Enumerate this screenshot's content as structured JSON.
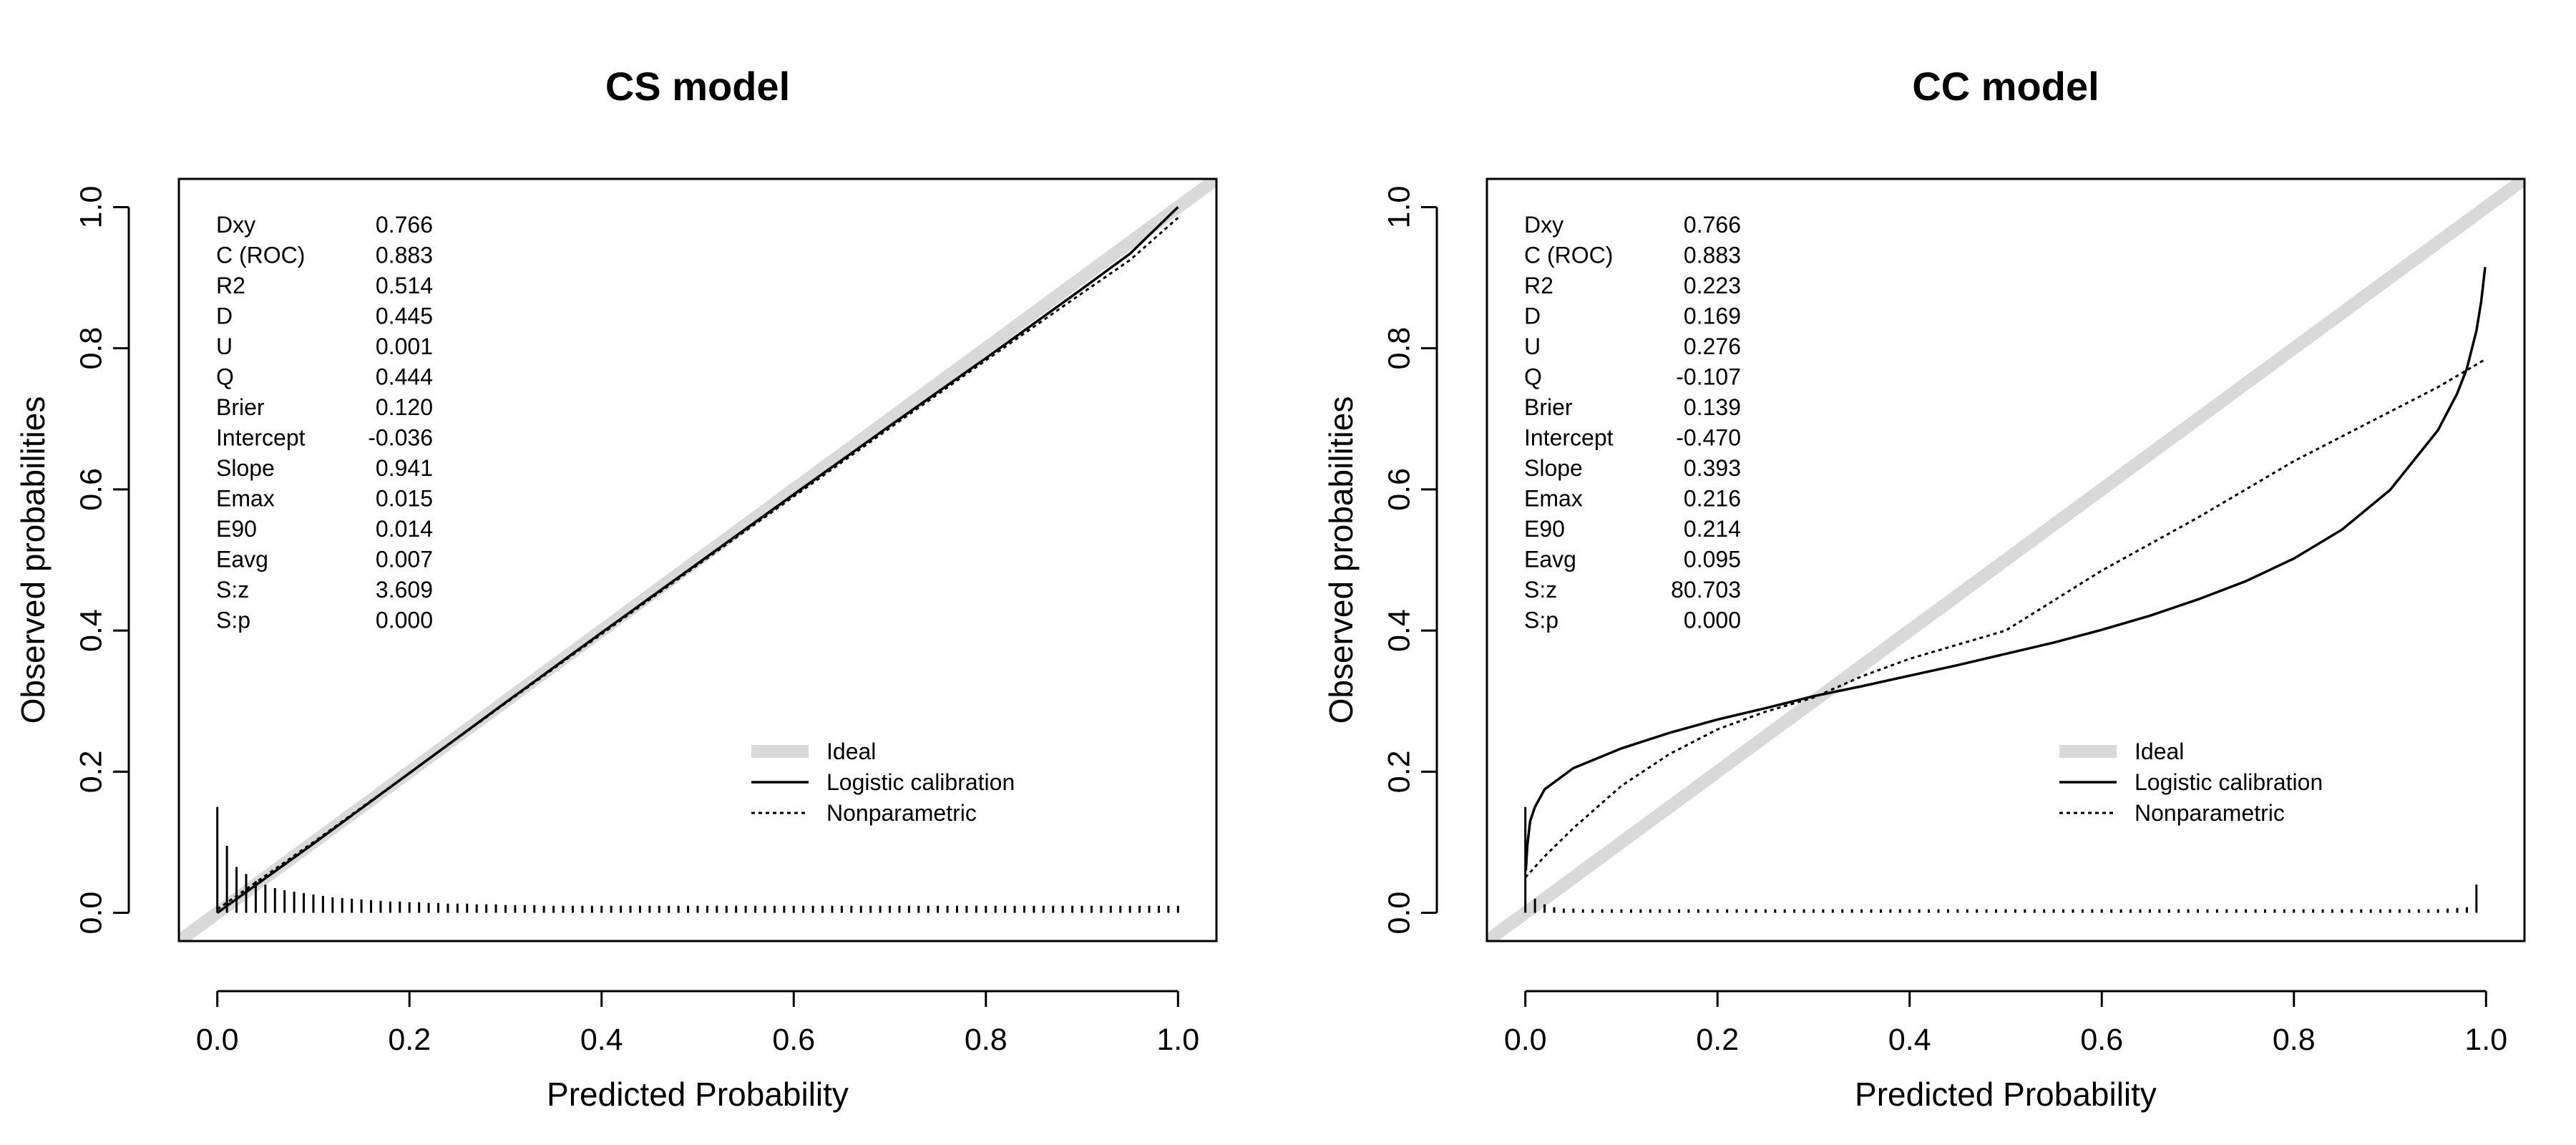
{
  "chart_data": [
    {
      "type": "line",
      "title": "CS model",
      "xlabel": "Predicted Probability",
      "ylabel": "Observed probabilities",
      "xlim": [
        0,
        1
      ],
      "ylim": [
        0,
        1
      ],
      "x_ticks": [
        "0.0",
        "0.2",
        "0.4",
        "0.6",
        "0.8",
        "1.0"
      ],
      "y_ticks": [
        "0.0",
        "0.2",
        "0.4",
        "0.6",
        "0.8",
        "1.0"
      ],
      "grid": false,
      "legend_position": "bottom-right",
      "stats": [
        {
          "label": "Dxy",
          "value": "0.766"
        },
        {
          "label": "C (ROC)",
          "value": "0.883"
        },
        {
          "label": "R2",
          "value": "0.514"
        },
        {
          "label": "D",
          "value": "0.445"
        },
        {
          "label": "U",
          "value": "0.001"
        },
        {
          "label": "Q",
          "value": "0.444"
        },
        {
          "label": "Brier",
          "value": "0.120"
        },
        {
          "label": "Intercept",
          "value": "-0.036"
        },
        {
          "label": "Slope",
          "value": "0.941"
        },
        {
          "label": "Emax",
          "value": "0.015"
        },
        {
          "label": "E90",
          "value": "0.014"
        },
        {
          "label": "Eavg",
          "value": "0.007"
        },
        {
          "label": "S:z",
          "value": "3.609"
        },
        {
          "label": "S:p",
          "value": "0.000"
        }
      ],
      "series": [
        {
          "name": "Ideal",
          "color": "#d9d9d9",
          "style": "thick",
          "x": [
            -0.05,
            1.05
          ],
          "y": [
            -0.05,
            1.05
          ]
        },
        {
          "name": "Logistic calibration",
          "color": "#000000",
          "style": "solid",
          "x": [
            0.0,
            0.1,
            0.2,
            0.3,
            0.4,
            0.5,
            0.6,
            0.7,
            0.8,
            0.9,
            0.95,
            1.0
          ],
          "y": [
            0.0,
            0.098,
            0.198,
            0.298,
            0.397,
            0.495,
            0.593,
            0.69,
            0.786,
            0.884,
            0.934,
            1.0
          ]
        },
        {
          "name": "Nonparametric",
          "color": "#000000",
          "style": "dotted",
          "x": [
            0.0,
            0.1,
            0.2,
            0.3,
            0.4,
            0.5,
            0.6,
            0.7,
            0.8,
            0.9,
            0.95,
            1.0
          ],
          "y": [
            0.005,
            0.1,
            0.198,
            0.297,
            0.395,
            0.493,
            0.59,
            0.687,
            0.783,
            0.878,
            0.925,
            0.985
          ]
        }
      ],
      "histogram": {
        "x": [
          0.0,
          0.01,
          0.02,
          0.03,
          0.04,
          0.05,
          0.06,
          0.07,
          0.08,
          0.09,
          0.1,
          0.11,
          0.12,
          0.13,
          0.14,
          0.15,
          0.16,
          0.17,
          0.18,
          0.19,
          0.2,
          0.21,
          0.22,
          0.23,
          0.24,
          0.25,
          0.26,
          0.27,
          0.28,
          0.29,
          0.3,
          0.31,
          0.32,
          0.33,
          0.34,
          0.35,
          0.36,
          0.37,
          0.38,
          0.39,
          0.4,
          0.41,
          0.42,
          0.43,
          0.44,
          0.45,
          0.46,
          0.47,
          0.48,
          0.49,
          0.5,
          0.51,
          0.52,
          0.53,
          0.54,
          0.55,
          0.56,
          0.57,
          0.58,
          0.59,
          0.6,
          0.61,
          0.62,
          0.63,
          0.64,
          0.65,
          0.66,
          0.67,
          0.68,
          0.69,
          0.7,
          0.71,
          0.72,
          0.73,
          0.74,
          0.75,
          0.76,
          0.77,
          0.78,
          0.79,
          0.8,
          0.81,
          0.82,
          0.83,
          0.84,
          0.85,
          0.86,
          0.87,
          0.88,
          0.89,
          0.9,
          0.91,
          0.92,
          0.93,
          0.94,
          0.95,
          0.96,
          0.97,
          0.98,
          0.99,
          1.0
        ],
        "height": [
          0.15,
          0.095,
          0.065,
          0.055,
          0.045,
          0.04,
          0.035,
          0.032,
          0.03,
          0.028,
          0.026,
          0.024,
          0.022,
          0.021,
          0.02,
          0.019,
          0.018,
          0.017,
          0.016,
          0.016,
          0.015,
          0.015,
          0.014,
          0.014,
          0.013,
          0.013,
          0.013,
          0.012,
          0.012,
          0.012,
          0.011,
          0.011,
          0.011,
          0.011,
          0.01,
          0.01,
          0.01,
          0.01,
          0.01,
          0.01,
          0.01,
          0.01,
          0.01,
          0.01,
          0.01,
          0.01,
          0.01,
          0.01,
          0.01,
          0.01,
          0.01,
          0.01,
          0.01,
          0.01,
          0.01,
          0.01,
          0.01,
          0.01,
          0.01,
          0.01,
          0.01,
          0.01,
          0.01,
          0.01,
          0.01,
          0.01,
          0.01,
          0.01,
          0.01,
          0.01,
          0.01,
          0.01,
          0.01,
          0.01,
          0.01,
          0.01,
          0.01,
          0.01,
          0.01,
          0.01,
          0.01,
          0.01,
          0.01,
          0.01,
          0.01,
          0.01,
          0.01,
          0.01,
          0.01,
          0.01,
          0.01,
          0.01,
          0.01,
          0.01,
          0.01,
          0.01,
          0.01,
          0.01,
          0.01,
          0.01,
          0.01
        ]
      }
    },
    {
      "type": "line",
      "title": "CC model",
      "xlabel": "Predicted Probability",
      "ylabel": "Observed probabilities",
      "xlim": [
        0,
        1
      ],
      "ylim": [
        0,
        1
      ],
      "x_ticks": [
        "0.0",
        "0.2",
        "0.4",
        "0.6",
        "0.8",
        "1.0"
      ],
      "y_ticks": [
        "0.0",
        "0.2",
        "0.4",
        "0.6",
        "0.8",
        "1.0"
      ],
      "grid": false,
      "legend_position": "bottom-right",
      "stats": [
        {
          "label": "Dxy",
          "value": "0.766"
        },
        {
          "label": "C (ROC)",
          "value": "0.883"
        },
        {
          "label": "R2",
          "value": "0.223"
        },
        {
          "label": "D",
          "value": "0.169"
        },
        {
          "label": "U",
          "value": "0.276"
        },
        {
          "label": "Q",
          "value": "-0.107"
        },
        {
          "label": "Brier",
          "value": "0.139"
        },
        {
          "label": "Intercept",
          "value": "-0.470"
        },
        {
          "label": "Slope",
          "value": "0.393"
        },
        {
          "label": "Emax",
          "value": "0.216"
        },
        {
          "label": "E90",
          "value": "0.214"
        },
        {
          "label": "Eavg",
          "value": "0.095"
        },
        {
          "label": "S:z",
          "value": "80.703"
        },
        {
          "label": "S:p",
          "value": "0.000"
        }
      ],
      "series": [
        {
          "name": "Ideal",
          "color": "#d9d9d9",
          "style": "thick",
          "x": [
            -0.05,
            1.05
          ],
          "y": [
            -0.05,
            1.05
          ]
        },
        {
          "name": "Logistic calibration",
          "color": "#000000",
          "style": "solid",
          "x": [
            0.0005,
            0.002,
            0.005,
            0.01,
            0.02,
            0.05,
            0.1,
            0.15,
            0.2,
            0.25,
            0.3,
            0.35,
            0.4,
            0.45,
            0.5,
            0.55,
            0.6,
            0.65,
            0.7,
            0.75,
            0.8,
            0.85,
            0.9,
            0.95,
            0.97,
            0.98,
            0.99,
            0.995,
            0.999
          ],
          "y": [
            0.06,
            0.095,
            0.13,
            0.15,
            0.175,
            0.205,
            0.233,
            0.255,
            0.274,
            0.29,
            0.307,
            0.321,
            0.336,
            0.351,
            0.367,
            0.383,
            0.401,
            0.421,
            0.444,
            0.47,
            0.502,
            0.543,
            0.599,
            0.684,
            0.736,
            0.771,
            0.825,
            0.867,
            0.915
          ]
        },
        {
          "name": "Nonparametric",
          "color": "#000000",
          "style": "dotted",
          "x": [
            0.0,
            0.02,
            0.05,
            0.1,
            0.15,
            0.2,
            0.25,
            0.3,
            0.35,
            0.4,
            0.45,
            0.5,
            0.6,
            0.7,
            0.8,
            0.9,
            0.95,
            1.0
          ],
          "y": [
            0.05,
            0.08,
            0.12,
            0.18,
            0.225,
            0.26,
            0.285,
            0.305,
            0.335,
            0.36,
            0.38,
            0.4,
            0.485,
            0.56,
            0.64,
            0.71,
            0.745,
            0.785
          ]
        }
      ],
      "histogram": {
        "x": [
          0.0,
          0.01,
          0.02,
          0.03,
          0.04,
          0.05,
          0.06,
          0.07,
          0.08,
          0.09,
          0.1,
          0.11,
          0.12,
          0.13,
          0.14,
          0.15,
          0.16,
          0.17,
          0.18,
          0.19,
          0.2,
          0.21,
          0.22,
          0.23,
          0.24,
          0.25,
          0.26,
          0.27,
          0.28,
          0.29,
          0.3,
          0.31,
          0.32,
          0.33,
          0.34,
          0.35,
          0.36,
          0.37,
          0.38,
          0.39,
          0.4,
          0.41,
          0.42,
          0.43,
          0.44,
          0.45,
          0.46,
          0.47,
          0.48,
          0.49,
          0.5,
          0.51,
          0.52,
          0.53,
          0.54,
          0.55,
          0.56,
          0.57,
          0.58,
          0.59,
          0.6,
          0.61,
          0.62,
          0.63,
          0.64,
          0.65,
          0.66,
          0.67,
          0.68,
          0.69,
          0.7,
          0.71,
          0.72,
          0.73,
          0.74,
          0.75,
          0.76,
          0.77,
          0.78,
          0.79,
          0.8,
          0.81,
          0.82,
          0.83,
          0.84,
          0.85,
          0.86,
          0.87,
          0.88,
          0.89,
          0.9,
          0.91,
          0.92,
          0.93,
          0.94,
          0.95,
          0.96,
          0.97,
          0.98,
          0.99,
          1.0
        ],
        "height": [
          0.15,
          0.02,
          0.012,
          0.008,
          0.006,
          0.006,
          0.005,
          0.005,
          0.005,
          0.005,
          0.005,
          0.005,
          0.005,
          0.005,
          0.005,
          0.005,
          0.005,
          0.005,
          0.005,
          0.005,
          0.005,
          0.005,
          0.005,
          0.005,
          0.005,
          0.005,
          0.005,
          0.005,
          0.005,
          0.005,
          0.005,
          0.005,
          0.005,
          0.005,
          0.005,
          0.005,
          0.005,
          0.005,
          0.005,
          0.005,
          0.005,
          0.005,
          0.005,
          0.005,
          0.005,
          0.005,
          0.005,
          0.005,
          0.005,
          0.005,
          0.005,
          0.005,
          0.005,
          0.005,
          0.005,
          0.005,
          0.005,
          0.005,
          0.005,
          0.005,
          0.005,
          0.005,
          0.005,
          0.005,
          0.005,
          0.005,
          0.005,
          0.005,
          0.005,
          0.005,
          0.005,
          0.005,
          0.005,
          0.005,
          0.005,
          0.005,
          0.005,
          0.005,
          0.005,
          0.005,
          0.005,
          0.005,
          0.005,
          0.005,
          0.005,
          0.005,
          0.005,
          0.005,
          0.005,
          0.005,
          0.005,
          0.005,
          0.005,
          0.005,
          0.005,
          0.005,
          0.006,
          0.007,
          0.008,
          0.04,
          0.0
        ]
      }
    }
  ]
}
